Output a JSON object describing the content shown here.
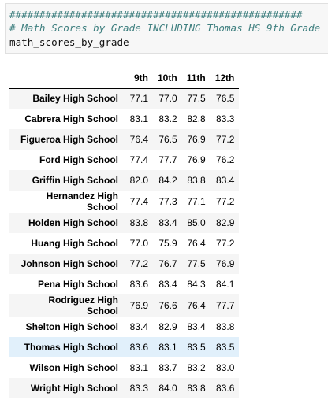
{
  "code_cell": {
    "comment_hashes": "#################################################",
    "comment_title": "# Math Scores by Grade INCLUDING Thomas HS 9th Grade",
    "variable": "math_scores_by_grade"
  },
  "table": {
    "columns": [
      "9th",
      "10th",
      "11th",
      "12th"
    ],
    "highlighted_row": "Thomas High School",
    "rows": [
      {
        "school": "Bailey High School",
        "values": [
          "77.1",
          "77.0",
          "77.5",
          "76.5"
        ]
      },
      {
        "school": "Cabrera High School",
        "values": [
          "83.1",
          "83.2",
          "82.8",
          "83.3"
        ]
      },
      {
        "school": "Figueroa High School",
        "values": [
          "76.4",
          "76.5",
          "76.9",
          "77.2"
        ]
      },
      {
        "school": "Ford High School",
        "values": [
          "77.4",
          "77.7",
          "76.9",
          "76.2"
        ]
      },
      {
        "school": "Griffin High School",
        "values": [
          "82.0",
          "84.2",
          "83.8",
          "83.4"
        ]
      },
      {
        "school": "Hernandez High School",
        "values": [
          "77.4",
          "77.3",
          "77.1",
          "77.2"
        ]
      },
      {
        "school": "Holden High School",
        "values": [
          "83.8",
          "83.4",
          "85.0",
          "82.9"
        ]
      },
      {
        "school": "Huang High School",
        "values": [
          "77.0",
          "75.9",
          "76.4",
          "77.2"
        ]
      },
      {
        "school": "Johnson High School",
        "values": [
          "77.2",
          "76.7",
          "77.5",
          "76.9"
        ]
      },
      {
        "school": "Pena High School",
        "values": [
          "83.6",
          "83.4",
          "84.3",
          "84.1"
        ]
      },
      {
        "school": "Rodriguez High School",
        "values": [
          "76.9",
          "76.6",
          "76.4",
          "77.7"
        ]
      },
      {
        "school": "Shelton High School",
        "values": [
          "83.4",
          "82.9",
          "83.4",
          "83.8"
        ]
      },
      {
        "school": "Thomas High School",
        "values": [
          "83.6",
          "83.1",
          "83.5",
          "83.5"
        ]
      },
      {
        "school": "Wilson High School",
        "values": [
          "83.1",
          "83.7",
          "83.2",
          "83.0"
        ]
      },
      {
        "school": "Wright High School",
        "values": [
          "83.3",
          "84.0",
          "83.8",
          "83.6"
        ]
      }
    ]
  }
}
